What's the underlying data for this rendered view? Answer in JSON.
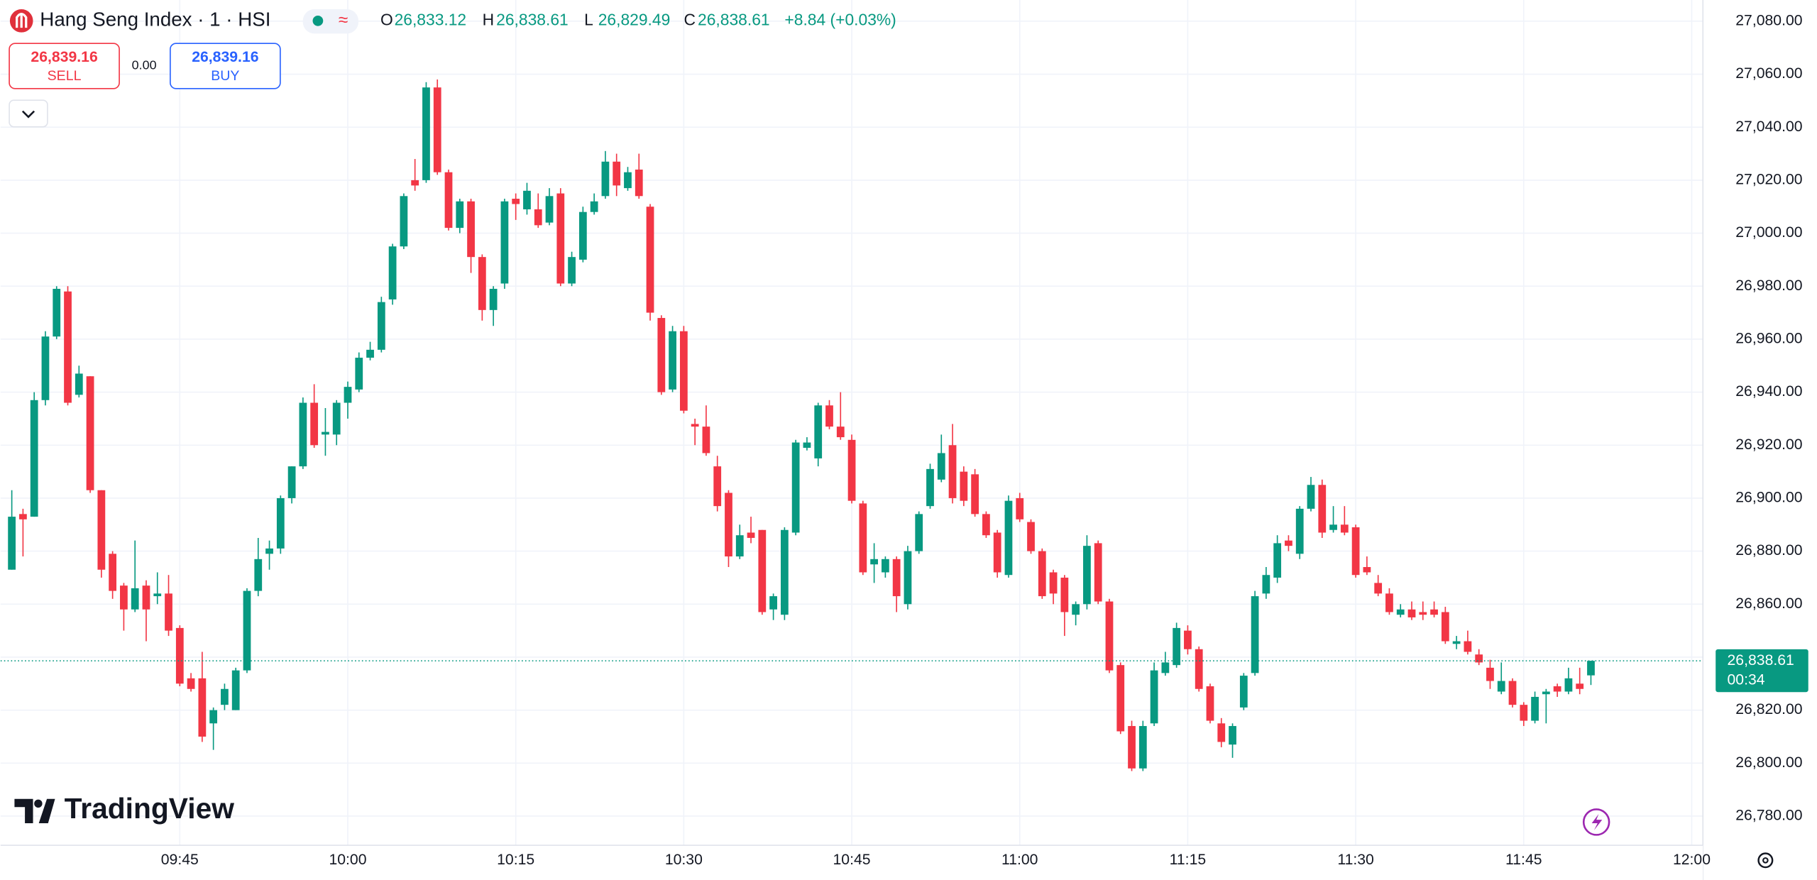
{
  "header": {
    "symbol": "Hang Seng Index · 1 · HSI",
    "o_label": "O",
    "o_value": "26,833.12",
    "h_label": "H",
    "h_value": "26,838.61",
    "l_label": "L",
    "l_value": "26,829.49",
    "c_label": "C",
    "c_value": "26,838.61",
    "change": "+8.84 (+0.03%)"
  },
  "trade": {
    "sell_price": "26,839.16",
    "sell": "SELL",
    "spread": "0.00",
    "buy_price": "26,839.16",
    "buy": "BUY"
  },
  "price_label": {
    "price": "26,838.61",
    "countdown": "00:34"
  },
  "logo": "TradingView",
  "chart_data": {
    "type": "candlestick",
    "up_color": "#089981",
    "down_color": "#f23645",
    "grid": true,
    "xlim": [
      "09:29",
      "12:01"
    ],
    "xticks": [
      "09:45",
      "10:00",
      "10:15",
      "10:30",
      "10:45",
      "11:00",
      "11:15",
      "11:30",
      "11:45",
      "12:00"
    ],
    "ylim": [
      26769,
      27088
    ],
    "yticks": [
      {
        "value": 26780,
        "label": "26,780.00"
      },
      {
        "value": 26800,
        "label": "26,800.00"
      },
      {
        "value": 26820,
        "label": "26,820.00"
      },
      {
        "value": 26840,
        "label": "26,840.00"
      },
      {
        "value": 26860,
        "label": "26,860.00"
      },
      {
        "value": 26880,
        "label": "26,880.00"
      },
      {
        "value": 26900,
        "label": "26,900.00"
      },
      {
        "value": 26920,
        "label": "26,920.00"
      },
      {
        "value": 26940,
        "label": "26,940.00"
      },
      {
        "value": 26960,
        "label": "26,960.00"
      },
      {
        "value": 26980,
        "label": "26,980.00"
      },
      {
        "value": 27000,
        "label": "27,000.00"
      },
      {
        "value": 27020,
        "label": "27,020.00"
      },
      {
        "value": 27040,
        "label": "27,040.00"
      },
      {
        "value": 27060,
        "label": "27,060.00"
      },
      {
        "value": 27080,
        "label": "27,080.00"
      }
    ],
    "x": [
      "09:30",
      "09:31",
      "09:32",
      "09:33",
      "09:34",
      "09:35",
      "09:36",
      "09:37",
      "09:38",
      "09:39",
      "09:40",
      "09:41",
      "09:42",
      "09:43",
      "09:44",
      "09:45",
      "09:46",
      "09:47",
      "09:48",
      "09:49",
      "09:50",
      "09:51",
      "09:52",
      "09:53",
      "09:54",
      "09:55",
      "09:56",
      "09:57",
      "09:58",
      "09:59",
      "10:00",
      "10:01",
      "10:02",
      "10:03",
      "10:04",
      "10:05",
      "10:06",
      "10:07",
      "10:08",
      "10:09",
      "10:10",
      "10:11",
      "10:12",
      "10:13",
      "10:14",
      "10:15",
      "10:16",
      "10:17",
      "10:18",
      "10:19",
      "10:20",
      "10:21",
      "10:22",
      "10:23",
      "10:24",
      "10:25",
      "10:26",
      "10:27",
      "10:28",
      "10:29",
      "10:30",
      "10:31",
      "10:32",
      "10:33",
      "10:34",
      "10:35",
      "10:36",
      "10:37",
      "10:38",
      "10:39",
      "10:40",
      "10:41",
      "10:42",
      "10:43",
      "10:44",
      "10:45",
      "10:46",
      "10:47",
      "10:48",
      "10:49",
      "10:50",
      "10:51",
      "10:52",
      "10:53",
      "10:54",
      "10:55",
      "10:56",
      "10:57",
      "10:58",
      "10:59",
      "11:00",
      "11:01",
      "11:02",
      "11:03",
      "11:04",
      "11:05",
      "11:06",
      "11:07",
      "11:08",
      "11:09",
      "11:10",
      "11:11",
      "11:12",
      "11:13",
      "11:14",
      "11:15",
      "11:16",
      "11:17",
      "11:18",
      "11:19",
      "11:20",
      "11:21",
      "11:22",
      "11:23",
      "11:24",
      "11:25",
      "11:26",
      "11:27",
      "11:28",
      "11:29",
      "11:30",
      "11:31",
      "11:32",
      "11:33",
      "11:34",
      "11:35",
      "11:36",
      "11:37",
      "11:38",
      "11:39",
      "11:40",
      "11:41",
      "11:42",
      "11:43",
      "11:44",
      "11:45",
      "11:46",
      "11:47",
      "11:48",
      "11:49",
      "11:50",
      "11:51"
    ],
    "open": [
      26873,
      26894,
      26893,
      26937,
      26961,
      26978,
      26939,
      26946,
      26903,
      26879,
      26867,
      26858,
      26867,
      26863,
      26864,
      26851,
      26832,
      26832,
      26815,
      26822,
      26820,
      26835,
      26865,
      26879,
      26881,
      26900,
      26912,
      26936,
      26924,
      26924,
      26936,
      26941,
      26953,
      26956,
      26975,
      26995,
      27020,
      27020,
      27055,
      27023,
      27002,
      27012,
      26991,
      26971,
      26981,
      27013,
      27009,
      27009,
      27004,
      27015,
      26981,
      26990,
      27008,
      27014,
      27027,
      27017,
      27024,
      27010,
      26968,
      26941,
      26963,
      26928,
      26927,
      26912,
      26902,
      26878,
      26887,
      26888,
      26858,
      26856,
      26887,
      26919,
      26915,
      26935,
      26927,
      26922,
      26898,
      26875,
      26872,
      26877,
      26860,
      26880,
      26897,
      26907,
      26920,
      26910,
      26909,
      26894,
      26887,
      26871,
      26900,
      26891,
      26880,
      26872,
      26870,
      26856,
      26860,
      26883,
      26861,
      26837,
      26814,
      26798,
      26815,
      26834,
      26837,
      26850,
      26843,
      26829,
      26815,
      26807,
      26821,
      26834,
      26864,
      26870,
      26884,
      26879,
      26896,
      26905,
      26888,
      26890,
      26889,
      26874,
      26868,
      26864,
      26856,
      26858,
      26857,
      26858,
      26857,
      26845,
      26846,
      26841,
      26836,
      26827,
      26831,
      26822,
      26816,
      26826,
      26829,
      26827,
      26830,
      26833.12
    ],
    "high": [
      26903,
      26896,
      26940,
      26963,
      26980,
      26980,
      26950,
      26946,
      26903,
      26880,
      26868,
      26884,
      26869,
      26872,
      26871,
      26852,
      26834,
      26842,
      26821,
      26830,
      26836,
      26866,
      26885,
      26884,
      26901,
      26912,
      26938,
      26943,
      26934,
      26937,
      26944,
      26955,
      26959,
      26976,
      26996,
      27015,
      27028,
      27057,
      27058,
      27024,
      27013,
      27013,
      26992,
      26980,
      27013,
      27015,
      27019,
      27015,
      27017,
      27017,
      26993,
      27010,
      27015,
      27031,
      27030,
      27025,
      27030,
      27011,
      26969,
      26965,
      26965,
      26930,
      26935,
      26916,
      26903,
      26890,
      26893,
      26888,
      26864,
      26889,
      26922,
      26923,
      26936,
      26937,
      26940,
      26924,
      26899,
      26883,
      26878,
      26878,
      26882,
      26895,
      26913,
      26924,
      26928,
      26912,
      26911,
      26895,
      26888,
      26901,
      26902,
      26892,
      26881,
      26873,
      26871,
      26861,
      26886,
      26884,
      26862,
      26838,
      26816,
      26816,
      26838,
      26842,
      26853,
      26852,
      26844,
      26830,
      26817,
      26815,
      26834,
      26865,
      26874,
      26886,
      26886,
      26897,
      26908,
      26907,
      26897,
      26897,
      26890,
      26878,
      26871,
      26866,
      26860,
      26861,
      26861,
      26861,
      26859,
      26848,
      26850,
      26843,
      26839,
      26838,
      26832,
      26823,
      26827,
      26828,
      26830,
      26836,
      26836,
      26838.61
    ],
    "low": [
      26873,
      26878,
      26893,
      26935,
      26960,
      26935,
      26938,
      26902,
      26870,
      26862,
      26850,
      26857,
      26846,
      26860,
      26848,
      26829,
      26827,
      26808,
      26805,
      26820,
      26820,
      26834,
      26863,
      26873,
      26879,
      26898,
      26911,
      26919,
      26916,
      26920,
      26930,
      26940,
      26952,
      26955,
      26973,
      26994,
      27016,
      27019,
      27022,
      27001,
      27000,
      26985,
      26967,
      26965,
      26979,
      27005,
      27007,
      27002,
      27003,
      26980,
      26980,
      26989,
      27007,
      27013,
      27014,
      27016,
      27013,
      26967,
      26939,
      26940,
      26932,
      26920,
      26916,
      26895,
      26874,
      26877,
      26883,
      26856,
      26854,
      26854,
      26886,
      26918,
      26912,
      26926,
      26922,
      26898,
      26871,
      26868,
      26870,
      26857,
      26858,
      26879,
      26896,
      26906,
      26898,
      26897,
      26893,
      26885,
      26870,
      26870,
      26891,
      26879,
      26862,
      26860,
      26848,
      26852,
      26858,
      26860,
      26834,
      26811,
      26797,
      26797,
      26814,
      26833,
      26836,
      26841,
      26827,
      26815,
      26806,
      26802,
      26820,
      26833,
      26862,
      26868,
      26880,
      26877,
      26895,
      26885,
      26887,
      26886,
      26870,
      26871,
      26863,
      26856,
      26855,
      26854,
      26854,
      26855,
      26845,
      26843,
      26841,
      26837,
      26828,
      26826,
      26821,
      26814,
      26815,
      26815,
      26825,
      26826,
      26826,
      26829.49
    ],
    "close": [
      26893,
      26892,
      26937,
      26961,
      26979,
      26936,
      26947,
      26903,
      26873,
      26865,
      26858,
      26866,
      26858,
      26864,
      26850,
      26830,
      26828,
      26810,
      26820,
      26828,
      26835,
      26865,
      26877,
      26881,
      26900,
      26912,
      26936,
      26920,
      26925,
      26936,
      26942,
      26953,
      26956,
      26974,
      26995,
      27014,
      27018,
      27055,
      27023,
      27002,
      27012,
      26991,
      26971,
      26979,
      27012,
      27011,
      27016,
      27003,
      27014,
      26981,
      26991,
      27008,
      27012,
      27027,
      27018,
      27023,
      27014,
      26970,
      26940,
      26963,
      26933,
      26927,
      26917,
      26897,
      26878,
      26886,
      26885,
      26857,
      26863,
      26888,
      26921,
      26921,
      26935,
      26927,
      26923,
      26899,
      26872,
      26877,
      26877,
      26863,
      26880,
      26894,
      26911,
      26917,
      26900,
      26899,
      26894,
      26886,
      26872,
      26899,
      26892,
      26880,
      26863,
      26864,
      26857,
      26860,
      26882,
      26861,
      26835,
      26812,
      26798,
      26814,
      26835,
      26838,
      26851,
      26843,
      26828,
      26816,
      26808,
      26814,
      26833,
      26863,
      26871,
      26883,
      26882,
      26896,
      26905,
      26887,
      26890,
      26887,
      26871,
      26872,
      26864,
      26857,
      26858,
      26855,
      26856,
      26856,
      26846,
      26846,
      26842,
      26838,
      26831,
      26831,
      26822,
      26816,
      26825,
      26827,
      26827,
      26832,
      26828,
      26838.61
    ]
  }
}
